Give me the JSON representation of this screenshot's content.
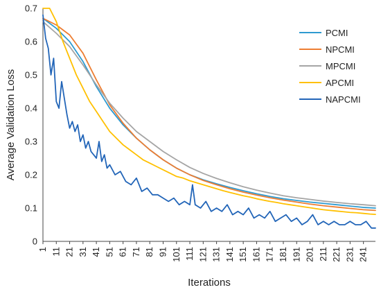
{
  "chart_data": {
    "type": "line",
    "title": "",
    "xlabel": "Iterations",
    "ylabel": "Average Validation Loss",
    "xlim": [
      1,
      250
    ],
    "ylim": [
      0,
      0.7
    ],
    "grid": false,
    "legend_position": "top-right",
    "x_ticks": [
      "1",
      "11",
      "21",
      "31",
      "41",
      "51",
      "61",
      "71",
      "81",
      "91",
      "101",
      "111",
      "121",
      "131",
      "141",
      "151",
      "161",
      "171",
      "181",
      "191",
      "201",
      "211",
      "221",
      "231",
      "241"
    ],
    "y_ticks": [
      "0",
      "0.1",
      "0.2",
      "0.3",
      "0.4",
      "0.5",
      "0.6",
      "0.7"
    ],
    "series": [
      {
        "name": "PCMI",
        "color": "#2E9AD0",
        "x": [
          1,
          11,
          21,
          31,
          41,
          51,
          61,
          71,
          81,
          91,
          101,
          111,
          121,
          131,
          141,
          151,
          161,
          171,
          181,
          191,
          201,
          211,
          221,
          231,
          241,
          250
        ],
        "y": [
          0.67,
          0.64,
          0.6,
          0.54,
          0.465,
          0.4,
          0.35,
          0.31,
          0.275,
          0.245,
          0.22,
          0.2,
          0.185,
          0.173,
          0.162,
          0.152,
          0.143,
          0.135,
          0.128,
          0.123,
          0.118,
          0.114,
          0.11,
          0.106,
          0.102,
          0.1
        ]
      },
      {
        "name": "NPCMI",
        "color": "#ED7D31",
        "x": [
          1,
          11,
          21,
          31,
          41,
          51,
          61,
          71,
          81,
          91,
          101,
          111,
          121,
          131,
          141,
          151,
          161,
          171,
          181,
          191,
          201,
          211,
          221,
          231,
          241,
          250
        ],
        "y": [
          0.67,
          0.65,
          0.62,
          0.565,
          0.485,
          0.41,
          0.355,
          0.31,
          0.275,
          0.245,
          0.22,
          0.2,
          0.183,
          0.17,
          0.158,
          0.148,
          0.139,
          0.131,
          0.124,
          0.118,
          0.112,
          0.107,
          0.103,
          0.099,
          0.095,
          0.093
        ]
      },
      {
        "name": "MPCMI",
        "color": "#A5A5A5",
        "x": [
          1,
          11,
          21,
          31,
          41,
          51,
          61,
          71,
          81,
          91,
          101,
          111,
          121,
          131,
          141,
          151,
          161,
          171,
          181,
          191,
          201,
          211,
          221,
          231,
          241,
          250
        ],
        "y": [
          0.66,
          0.625,
          0.585,
          0.53,
          0.47,
          0.415,
          0.37,
          0.33,
          0.3,
          0.27,
          0.245,
          0.222,
          0.204,
          0.189,
          0.176,
          0.164,
          0.154,
          0.145,
          0.137,
          0.131,
          0.126,
          0.121,
          0.117,
          0.113,
          0.11,
          0.107
        ]
      },
      {
        "name": "APCMI",
        "color": "#FFC000",
        "x": [
          1,
          6,
          11,
          16,
          21,
          26,
          31,
          36,
          41,
          46,
          51,
          56,
          61,
          66,
          71,
          76,
          81,
          86,
          91,
          96,
          101,
          106,
          111,
          116,
          121,
          126,
          131,
          136,
          141,
          146,
          151,
          156,
          161,
          166,
          171,
          176,
          181,
          186,
          191,
          196,
          201,
          206,
          211,
          216,
          221,
          226,
          231,
          236,
          241,
          246,
          250
        ],
        "y": [
          0.7,
          0.7,
          0.66,
          0.6,
          0.55,
          0.5,
          0.46,
          0.42,
          0.39,
          0.36,
          0.33,
          0.31,
          0.29,
          0.275,
          0.26,
          0.245,
          0.235,
          0.225,
          0.215,
          0.205,
          0.195,
          0.19,
          0.182,
          0.176,
          0.17,
          0.164,
          0.158,
          0.152,
          0.147,
          0.142,
          0.137,
          0.133,
          0.128,
          0.124,
          0.12,
          0.117,
          0.113,
          0.11,
          0.107,
          0.104,
          0.101,
          0.098,
          0.095,
          0.093,
          0.091,
          0.089,
          0.087,
          0.086,
          0.084,
          0.082,
          0.081
        ]
      },
      {
        "name": "NAPCMI",
        "color": "#2265B8",
        "x": [
          1,
          3,
          5,
          7,
          9,
          11,
          13,
          15,
          17,
          19,
          21,
          23,
          25,
          27,
          29,
          31,
          33,
          35,
          37,
          39,
          41,
          43,
          45,
          47,
          49,
          51,
          55,
          59,
          63,
          67,
          71,
          75,
          79,
          83,
          87,
          91,
          95,
          99,
          103,
          107,
          111,
          113,
          115,
          119,
          123,
          127,
          131,
          135,
          139,
          143,
          147,
          151,
          155,
          159,
          163,
          167,
          171,
          175,
          179,
          183,
          187,
          191,
          195,
          199,
          203,
          207,
          211,
          215,
          219,
          223,
          227,
          231,
          235,
          239,
          243,
          247,
          250
        ],
        "y": [
          0.68,
          0.61,
          0.58,
          0.5,
          0.55,
          0.42,
          0.4,
          0.48,
          0.43,
          0.38,
          0.34,
          0.36,
          0.33,
          0.35,
          0.3,
          0.32,
          0.28,
          0.3,
          0.27,
          0.26,
          0.25,
          0.3,
          0.24,
          0.26,
          0.22,
          0.23,
          0.2,
          0.21,
          0.18,
          0.17,
          0.19,
          0.15,
          0.16,
          0.14,
          0.14,
          0.13,
          0.12,
          0.13,
          0.11,
          0.12,
          0.11,
          0.17,
          0.11,
          0.1,
          0.12,
          0.09,
          0.1,
          0.09,
          0.11,
          0.08,
          0.09,
          0.08,
          0.1,
          0.07,
          0.08,
          0.07,
          0.09,
          0.06,
          0.07,
          0.08,
          0.06,
          0.07,
          0.05,
          0.06,
          0.08,
          0.05,
          0.06,
          0.05,
          0.06,
          0.05,
          0.05,
          0.06,
          0.05,
          0.05,
          0.06,
          0.04,
          0.04
        ]
      }
    ]
  }
}
